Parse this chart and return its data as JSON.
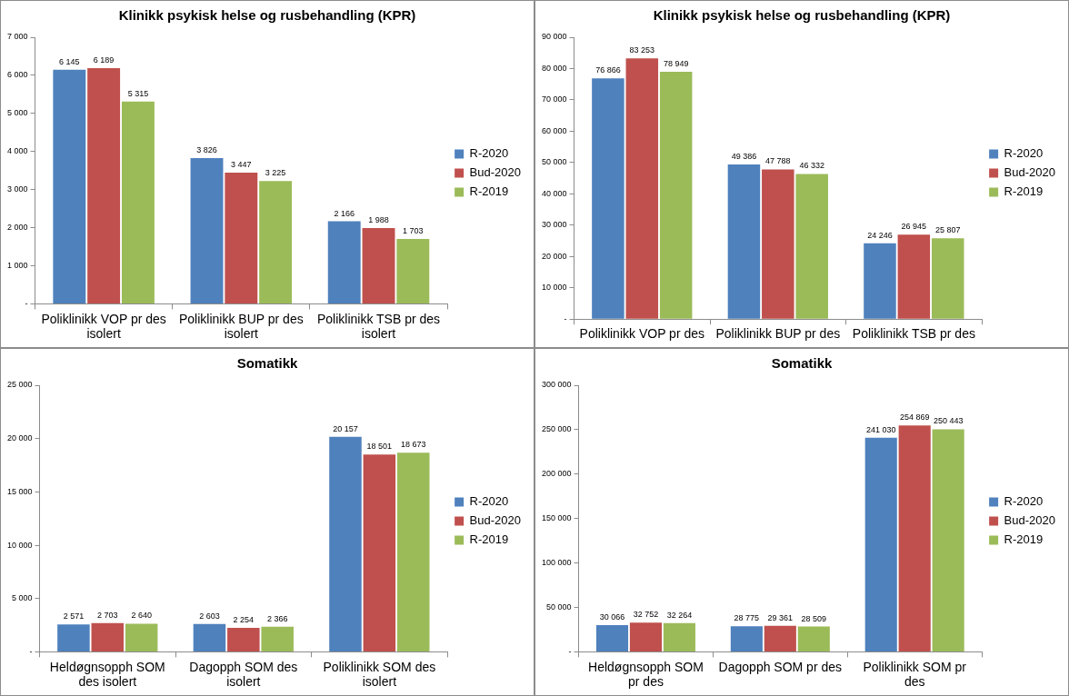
{
  "chart_data": [
    {
      "type": "bar",
      "title": "Klinikk psykisk helse og rusbehandling (KPR)",
      "categories": [
        "Poliklinikk VOP pr des isolert",
        "Poliklinikk BUP pr des isolert",
        "Poliklinikk TSB pr des isolert"
      ],
      "series": [
        {
          "name": "R-2020",
          "color": "#4f81bd",
          "values": [
            6145,
            3826,
            2166
          ],
          "value_labels": [
            "6 145",
            "3 826",
            "2 166"
          ]
        },
        {
          "name": "Bud-2020",
          "color": "#c0504d",
          "values": [
            6189,
            3447,
            1988
          ],
          "value_labels": [
            "6 189",
            "3 447",
            "1 988"
          ]
        },
        {
          "name": "R-2019",
          "color": "#9bbb59",
          "values": [
            5315,
            3225,
            1703
          ],
          "value_labels": [
            "5 315",
            "3 225",
            "1 703"
          ]
        }
      ],
      "ylim": [
        0,
        7000
      ],
      "yticks": [
        {
          "value": 0,
          "label": "-"
        },
        {
          "value": 1000,
          "label": "1 000"
        },
        {
          "value": 2000,
          "label": "2 000"
        },
        {
          "value": 3000,
          "label": "3 000"
        },
        {
          "value": 4000,
          "label": "4 000"
        },
        {
          "value": 5000,
          "label": "5 000"
        },
        {
          "value": 6000,
          "label": "6 000"
        },
        {
          "value": 7000,
          "label": "7 000"
        }
      ],
      "legend": "right"
    },
    {
      "type": "bar",
      "title": "Klinikk psykisk helse og rusbehandling (KPR)",
      "categories": [
        "Poliklinikk VOP pr des",
        "Poliklinikk BUP pr des",
        "Poliklinikk TSB pr des"
      ],
      "series": [
        {
          "name": "R-2020",
          "color": "#4f81bd",
          "values": [
            76866,
            49386,
            24246
          ],
          "value_labels": [
            "76 866",
            "49 386",
            "24 246"
          ]
        },
        {
          "name": "Bud-2020",
          "color": "#c0504d",
          "values": [
            83253,
            47788,
            26945
          ],
          "value_labels": [
            "83 253",
            "47 788",
            "26 945"
          ]
        },
        {
          "name": "R-2019",
          "color": "#9bbb59",
          "values": [
            78949,
            46332,
            25807
          ],
          "value_labels": [
            "78 949",
            "46 332",
            "25 807"
          ]
        }
      ],
      "ylim": [
        0,
        90000
      ],
      "yticks": [
        {
          "value": 0,
          "label": "-"
        },
        {
          "value": 10000,
          "label": "10 000"
        },
        {
          "value": 20000,
          "label": "20 000"
        },
        {
          "value": 30000,
          "label": "30 000"
        },
        {
          "value": 40000,
          "label": "40 000"
        },
        {
          "value": 50000,
          "label": "50 000"
        },
        {
          "value": 60000,
          "label": "60 000"
        },
        {
          "value": 70000,
          "label": "70 000"
        },
        {
          "value": 80000,
          "label": "80 000"
        },
        {
          "value": 90000,
          "label": "90 000"
        }
      ],
      "legend": "right"
    },
    {
      "type": "bar",
      "title": "Somatikk",
      "categories": [
        "Heldøgnsopph SOM des isolert",
        "Dagopph SOM des isolert",
        "Poliklinikk SOM des isolert"
      ],
      "series": [
        {
          "name": "R-2020",
          "color": "#4f81bd",
          "values": [
            2571,
            2603,
            20157
          ],
          "value_labels": [
            "2 571",
            "2 603",
            "20 157"
          ]
        },
        {
          "name": "Bud-2020",
          "color": "#c0504d",
          "values": [
            2703,
            2254,
            18501
          ],
          "value_labels": [
            "2 703",
            "2 254",
            "18 501"
          ]
        },
        {
          "name": "R-2019",
          "color": "#9bbb59",
          "values": [
            2640,
            2366,
            18673
          ],
          "value_labels": [
            "2 640",
            "2 366",
            "18 673"
          ]
        }
      ],
      "ylim": [
        0,
        25000
      ],
      "yticks": [
        {
          "value": 0,
          "label": "-"
        },
        {
          "value": 5000,
          "label": "5 000"
        },
        {
          "value": 10000,
          "label": "10 000"
        },
        {
          "value": 15000,
          "label": "15 000"
        },
        {
          "value": 20000,
          "label": "20 000"
        },
        {
          "value": 25000,
          "label": "25 000"
        }
      ],
      "legend": "right"
    },
    {
      "type": "bar",
      "title": "Somatikk",
      "categories": [
        "Heldøgnsopph SOM pr des",
        "Dagopph SOM pr des",
        "Poliklinikk SOM pr des"
      ],
      "series": [
        {
          "name": "R-2020",
          "color": "#4f81bd",
          "values": [
            30066,
            28775,
            241030
          ],
          "value_labels": [
            "30 066",
            "28 775",
            "241 030"
          ]
        },
        {
          "name": "Bud-2020",
          "color": "#c0504d",
          "values": [
            32752,
            29361,
            254869
          ],
          "value_labels": [
            "32 752",
            "29 361",
            "254 869"
          ]
        },
        {
          "name": "R-2019",
          "color": "#9bbb59",
          "values": [
            32264,
            28509,
            250443
          ],
          "value_labels": [
            "32 264",
            "28 509",
            "250 443"
          ]
        }
      ],
      "ylim": [
        0,
        300000
      ],
      "yticks": [
        {
          "value": 0,
          "label": "-"
        },
        {
          "value": 50000,
          "label": "50 000"
        },
        {
          "value": 100000,
          "label": "100 000"
        },
        {
          "value": 150000,
          "label": "150 000"
        },
        {
          "value": 200000,
          "label": "200 000"
        },
        {
          "value": 250000,
          "label": "250 000"
        },
        {
          "value": 300000,
          "label": "300 000"
        }
      ],
      "legend": "right"
    }
  ]
}
